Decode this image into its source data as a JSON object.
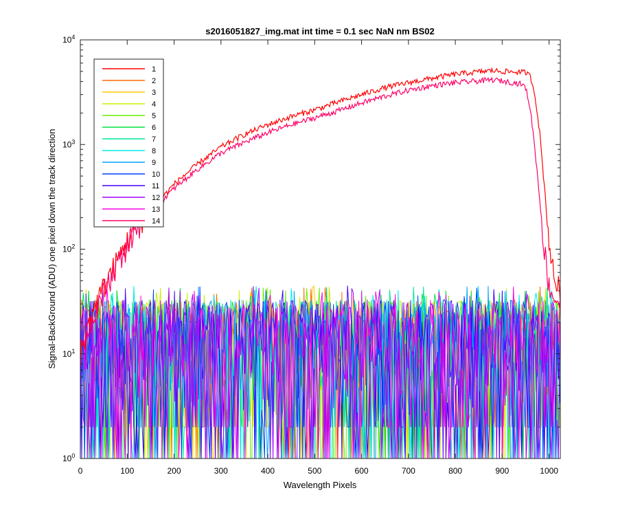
{
  "chart_data": {
    "type": "line",
    "title": "s2016051827_img.mat int time = 0.1 sec  NaN nm BS02",
    "xlabel": "Wavelength Pixels",
    "ylabel": "Signal-BackGround (ADU) one pixel down the track direction",
    "xlim": [
      0,
      1024
    ],
    "ylim": [
      1,
      10000
    ],
    "yscale": "log",
    "grid": false,
    "legend_position": "top-left",
    "x_ticks": [
      "0",
      "100",
      "200",
      "300",
      "400",
      "500",
      "600",
      "700",
      "800",
      "900",
      "1000"
    ],
    "y_ticks": [
      {
        "base": "10",
        "exp": "0"
      },
      {
        "base": "10",
        "exp": "1"
      },
      {
        "base": "10",
        "exp": "2"
      },
      {
        "base": "10",
        "exp": "3"
      },
      {
        "base": "10",
        "exp": "4"
      }
    ],
    "series": [
      {
        "name": "1",
        "color": "#ff0000",
        "kind": "signal",
        "points": [
          [
            0,
            10
          ],
          [
            20,
            22
          ],
          [
            40,
            35
          ],
          [
            60,
            55
          ],
          [
            80,
            80
          ],
          [
            100,
            120
          ],
          [
            120,
            170
          ],
          [
            150,
            240
          ],
          [
            180,
            330
          ],
          [
            200,
            420
          ],
          [
            250,
            650
          ],
          [
            300,
            950
          ],
          [
            350,
            1250
          ],
          [
            400,
            1550
          ],
          [
            450,
            1850
          ],
          [
            500,
            2150
          ],
          [
            550,
            2550
          ],
          [
            600,
            3000
          ],
          [
            650,
            3500
          ],
          [
            700,
            3900
          ],
          [
            750,
            4300
          ],
          [
            800,
            4700
          ],
          [
            850,
            4950
          ],
          [
            880,
            5100
          ],
          [
            900,
            5000
          ],
          [
            950,
            4900
          ],
          [
            960,
            4500
          ],
          [
            970,
            3000
          ],
          [
            980,
            1300
          ],
          [
            990,
            400
          ],
          [
            1000,
            120
          ],
          [
            1010,
            55
          ],
          [
            1024,
            40
          ]
        ]
      },
      {
        "name": "2",
        "color": "#ff6a00",
        "kind": "noise"
      },
      {
        "name": "3",
        "color": "#ffc800",
        "kind": "noise"
      },
      {
        "name": "4",
        "color": "#c8f000",
        "kind": "noise"
      },
      {
        "name": "5",
        "color": "#66ee00",
        "kind": "noise"
      },
      {
        "name": "6",
        "color": "#00e040",
        "kind": "noise"
      },
      {
        "name": "7",
        "color": "#00e8a0",
        "kind": "noise"
      },
      {
        "name": "8",
        "color": "#00e8e8",
        "kind": "noise"
      },
      {
        "name": "9",
        "color": "#00a0ff",
        "kind": "noise"
      },
      {
        "name": "10",
        "color": "#0040ff",
        "kind": "noise"
      },
      {
        "name": "11",
        "color": "#4000ff",
        "kind": "noise"
      },
      {
        "name": "12",
        "color": "#a000ff",
        "kind": "noise"
      },
      {
        "name": "13",
        "color": "#ff00e0",
        "kind": "noise"
      },
      {
        "name": "14",
        "color": "#ff0066",
        "kind": "signal",
        "points": [
          [
            0,
            10
          ],
          [
            20,
            20
          ],
          [
            40,
            32
          ],
          [
            60,
            50
          ],
          [
            80,
            75
          ],
          [
            100,
            110
          ],
          [
            120,
            160
          ],
          [
            150,
            230
          ],
          [
            180,
            310
          ],
          [
            200,
            380
          ],
          [
            250,
            580
          ],
          [
            300,
            830
          ],
          [
            350,
            1050
          ],
          [
            400,
            1300
          ],
          [
            450,
            1550
          ],
          [
            500,
            1800
          ],
          [
            550,
            2100
          ],
          [
            600,
            2500
          ],
          [
            650,
            2900
          ],
          [
            700,
            3300
          ],
          [
            750,
            3650
          ],
          [
            800,
            3900
          ],
          [
            850,
            4050
          ],
          [
            880,
            4150
          ],
          [
            900,
            4050
          ],
          [
            940,
            3800
          ],
          [
            950,
            3500
          ],
          [
            960,
            2200
          ],
          [
            970,
            900
          ],
          [
            980,
            300
          ],
          [
            990,
            100
          ],
          [
            1000,
            45
          ],
          [
            1010,
            35
          ],
          [
            1024,
            30
          ]
        ]
      }
    ],
    "noise_floor": {
      "min": 1,
      "typical_max": 35,
      "peak_max": 45
    }
  }
}
